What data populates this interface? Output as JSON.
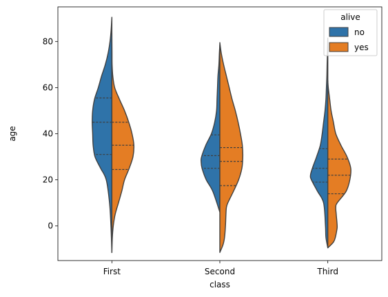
{
  "chart_data": {
    "type": "violin",
    "split": true,
    "inner": "quart",
    "title": "",
    "xlabel": "class",
    "ylabel": "age",
    "categories": [
      "First",
      "Second",
      "Third"
    ],
    "ylim": [
      -15,
      95
    ],
    "yticks": [
      0,
      20,
      40,
      60,
      80
    ],
    "grid": false,
    "legend": {
      "title": "alive",
      "location": "upper right"
    },
    "colors": {
      "no": "#2f73a9",
      "yes": "#e47d24",
      "outline": "#3f3f3f"
    },
    "series": [
      {
        "name": "no",
        "violins": [
          {
            "category": "First",
            "quartiles": [
              31,
              45,
              55.5
            ],
            "density_y": [
              -11.5,
              0,
              10,
              20,
              25,
              30,
              35,
              40,
              45,
              50,
              55,
              60,
              65,
              70,
              75,
              80,
              84,
              87,
              90.5
            ],
            "density_w": [
              0.0,
              0.02,
              0.05,
              0.12,
              0.24,
              0.36,
              0.4,
              0.41,
              0.42,
              0.41,
              0.37,
              0.29,
              0.22,
              0.14,
              0.08,
              0.04,
              0.02,
              0.01,
              0.0
            ]
          },
          {
            "category": "Second",
            "quartiles": [
              25,
              30.5,
              39.5
            ],
            "density_y": [
              6,
              15,
              20,
              25,
              28,
              30,
              35,
              40,
              45,
              50,
              55,
              60,
              65,
              70,
              75,
              78.5
            ],
            "density_w": [
              0.0,
              0.15,
              0.29,
              0.38,
              0.4,
              0.39,
              0.3,
              0.18,
              0.11,
              0.07,
              0.06,
              0.05,
              0.04,
              0.02,
              0.01,
              0.0
            ]
          },
          {
            "category": "Third",
            "quartiles": [
              19,
              25,
              33.5
            ],
            "density_y": [
              -9.5,
              -5,
              0,
              10,
              15,
              20,
              22,
              25,
              30,
              35,
              40,
              45,
              50,
              55,
              60,
              65,
              70,
              75,
              81.5
            ],
            "density_w": [
              0.0,
              0.04,
              0.05,
              0.09,
              0.22,
              0.35,
              0.37,
              0.33,
              0.24,
              0.16,
              0.12,
              0.09,
              0.06,
              0.04,
              0.03,
              0.02,
              0.015,
              0.008,
              0.0
            ]
          }
        ]
      },
      {
        "name": "yes",
        "violins": [
          {
            "category": "First",
            "quartiles": [
              24.5,
              35,
              45
            ],
            "density_y": [
              -11.5,
              -5,
              0,
              5,
              10,
              15,
              20,
              25,
              30,
              35,
              40,
              45,
              50,
              55,
              60,
              65,
              70,
              75,
              80,
              84
            ],
            "density_w": [
              0.0,
              0.01,
              0.03,
              0.07,
              0.14,
              0.21,
              0.27,
              0.37,
              0.45,
              0.47,
              0.43,
              0.36,
              0.27,
              0.16,
              0.06,
              0.02,
              0.005,
              0.003,
              0.001,
              0.0
            ]
          },
          {
            "category": "Second",
            "quartiles": [
              17.5,
              28,
              34
            ],
            "density_y": [
              -11.5,
              -8,
              -5,
              0,
              5,
              8,
              10,
              15,
              20,
              25,
              30,
              35,
              40,
              45,
              50,
              55,
              60,
              65,
              70,
              75,
              79.5
            ],
            "density_w": [
              0.0,
              0.07,
              0.1,
              0.12,
              0.13,
              0.14,
              0.17,
              0.29,
              0.4,
              0.47,
              0.49,
              0.48,
              0.44,
              0.39,
              0.33,
              0.26,
              0.2,
              0.14,
              0.08,
              0.03,
              0.0
            ]
          },
          {
            "category": "Third",
            "quartiles": [
              14,
              22,
              29
            ],
            "density_y": [
              -9.5,
              -7,
              -5,
              -2,
              0,
              5,
              8,
              10,
              15,
              20,
              25,
              30,
              35,
              40,
              45,
              50,
              55,
              60,
              63
            ],
            "density_w": [
              0.0,
              0.12,
              0.16,
              0.19,
              0.2,
              0.18,
              0.17,
              0.2,
              0.39,
              0.47,
              0.49,
              0.41,
              0.28,
              0.17,
              0.12,
              0.07,
              0.04,
              0.01,
              0.0
            ]
          }
        ]
      }
    ]
  }
}
